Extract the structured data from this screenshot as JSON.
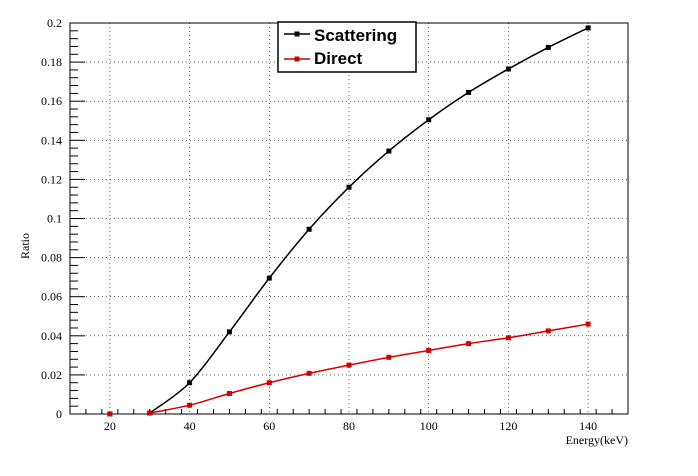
{
  "chart_data": {
    "type": "line",
    "title": "",
    "xlabel": "Energy(keV)",
    "ylabel": "Ratio",
    "xlim": [
      10,
      150
    ],
    "ylim": [
      0,
      0.2
    ],
    "x_ticks": [
      20,
      40,
      60,
      80,
      100,
      120,
      140
    ],
    "y_ticks": [
      0,
      0.02,
      0.04,
      0.06,
      0.08,
      0.1,
      0.12,
      0.14,
      0.16,
      0.18,
      0.2
    ],
    "grid": true,
    "legend": {
      "position": "top-center"
    },
    "series": [
      {
        "name": "Scattering",
        "color": "#000000",
        "x": [
          20,
          30,
          40,
          50,
          60,
          70,
          80,
          90,
          100,
          110,
          120,
          130,
          140
        ],
        "y": [
          0,
          0.0005,
          0.016,
          0.042,
          0.0695,
          0.0945,
          0.116,
          0.1345,
          0.1505,
          0.1645,
          0.1765,
          0.1875,
          0.1975
        ]
      },
      {
        "name": "Direct",
        "color": "#d40000",
        "x": [
          20,
          30,
          40,
          50,
          60,
          70,
          80,
          90,
          100,
          110,
          120,
          130,
          140
        ],
        "y": [
          0,
          0.0005,
          0.0045,
          0.0105,
          0.016,
          0.0208,
          0.025,
          0.029,
          0.0325,
          0.036,
          0.039,
          0.0425,
          0.046
        ]
      }
    ]
  }
}
